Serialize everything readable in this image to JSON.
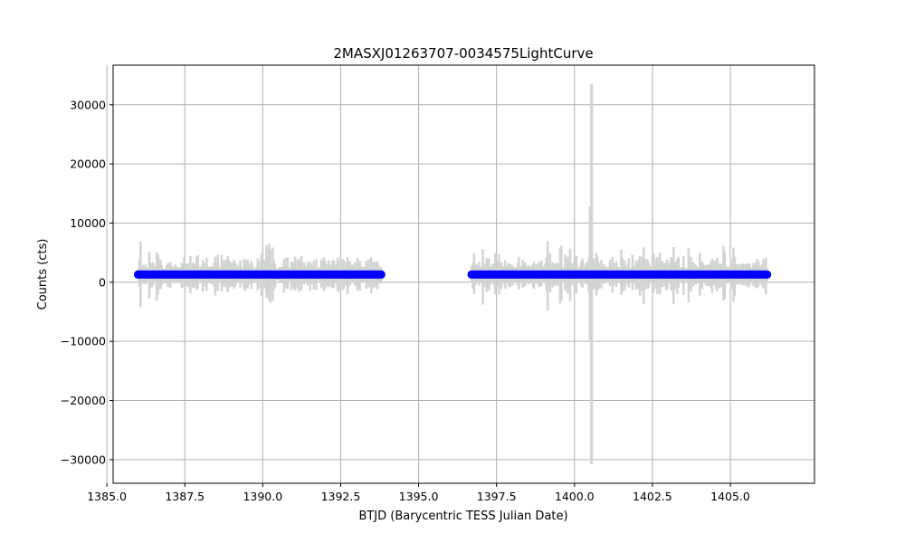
{
  "chart_data": {
    "type": "scatter",
    "title": "2MASXJ01263707-0034575LightCurve",
    "xlabel": "BTJD (Barycentric TESS Julian Date)",
    "ylabel": "Counts (cts)",
    "xlim": [
      1385.2,
      1407.7
    ],
    "ylim": [
      -34000,
      36700
    ],
    "grid": true,
    "xticks": [
      1385.0,
      1387.5,
      1390.0,
      1392.5,
      1395.0,
      1397.5,
      1400.0,
      1402.5,
      1405.0
    ],
    "xtick_labels": [
      "1385.0",
      "1387.5",
      "1390.0",
      "1392.5",
      "1395.0",
      "1397.5",
      "1400.0",
      "1402.5",
      "1405.0"
    ],
    "yticks": [
      30000,
      20000,
      10000,
      0,
      -10000,
      -20000,
      -30000
    ],
    "ytick_labels": [
      "30000",
      "20000",
      "10000",
      "0",
      "−10000",
      "−20000",
      "−30000"
    ],
    "series": [
      {
        "marker_color": "#0000ff",
        "errorbar_color": "#d3d3d3",
        "flux_level": 1300,
        "segments": [
          {
            "x_start": 1386.0,
            "x_end": 1393.8,
            "typical_error": 2200
          },
          {
            "x_start": 1396.7,
            "x_end": 1406.2,
            "typical_error": 2400
          }
        ],
        "outliers": [
          {
            "x": 1400.55,
            "y_high": 33500,
            "y_low": -30800
          },
          {
            "x": 1400.5,
            "y_high": 12800,
            "y_low": -9800
          }
        ]
      }
    ]
  }
}
